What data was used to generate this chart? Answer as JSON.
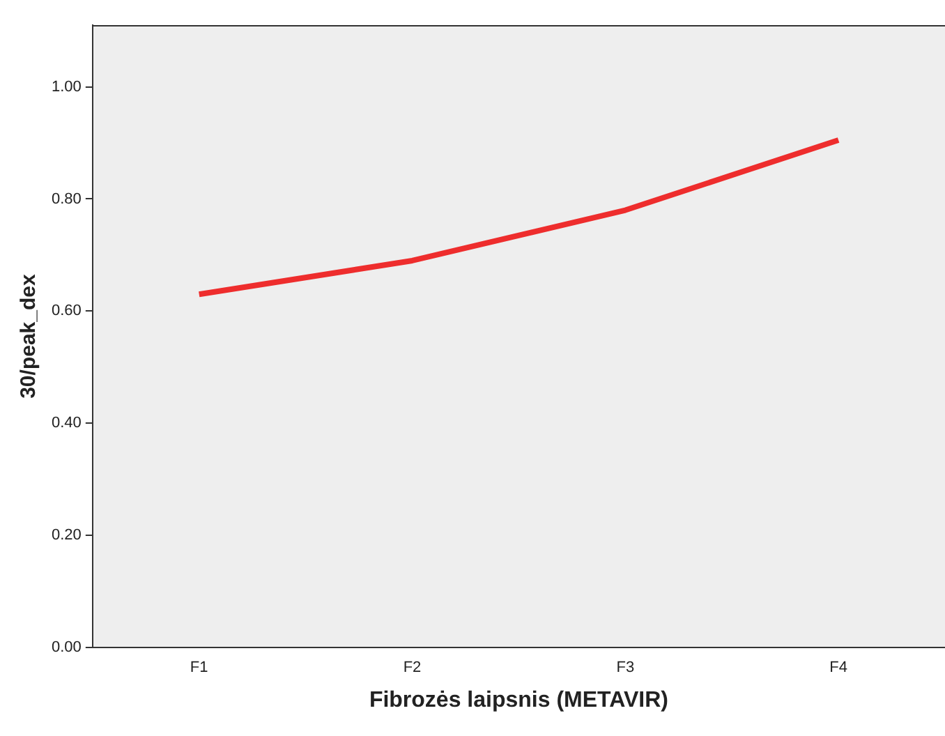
{
  "chart_data": {
    "type": "line",
    "xlabel": "Fibrozės laipsnis (METAVIR)",
    "ylabel": "30/peak_dex",
    "categories": [
      "F1",
      "F2",
      "F3",
      "F4"
    ],
    "series": [
      {
        "color": "#ee2d2d",
        "values": [
          0.63,
          0.69,
          0.78,
          0.905
        ]
      }
    ],
    "ylim": [
      0,
      1.11
    ],
    "yticks": [
      {
        "value": 0,
        "label": "0.00"
      },
      {
        "value": 0.2,
        "label": "0.20"
      },
      {
        "value": 0.4,
        "label": "0.40"
      },
      {
        "value": 0.6,
        "label": "0.60"
      },
      {
        "value": 0.8,
        "label": "0.80"
      },
      {
        "value": 1,
        "label": "1.00"
      }
    ],
    "grid": false,
    "legend": false,
    "marker": "none",
    "line_style": "solid"
  }
}
